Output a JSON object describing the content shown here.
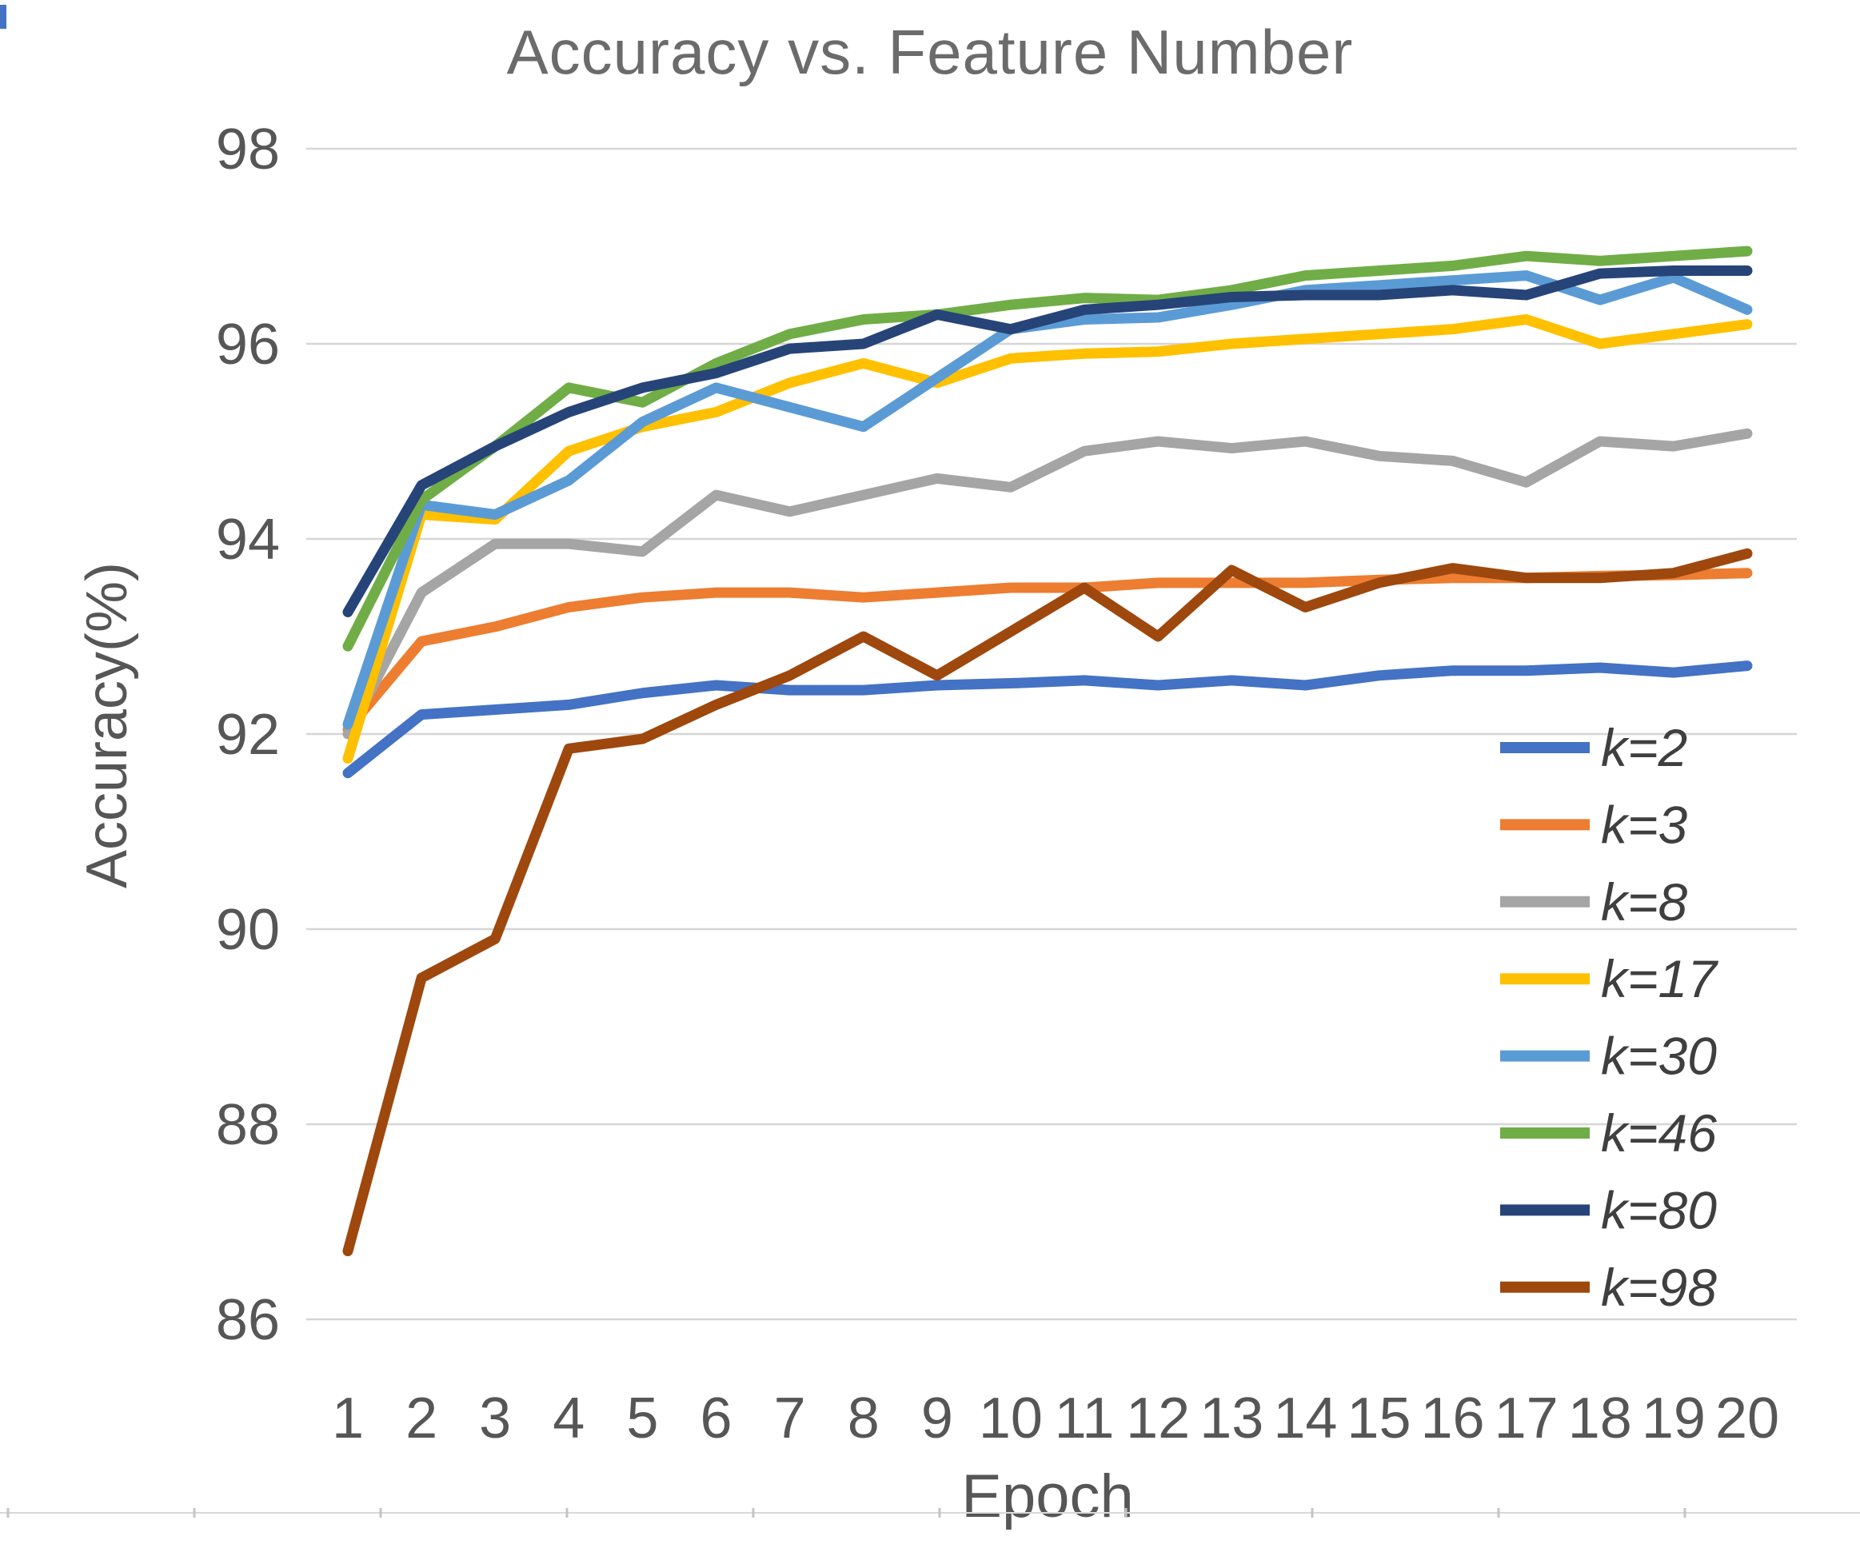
{
  "chart_data": {
    "type": "line",
    "title": "Accuracy vs. Feature Number",
    "xlabel": "Epoch",
    "ylabel": "Accuracy(%)",
    "x": [
      1,
      2,
      3,
      4,
      5,
      6,
      7,
      8,
      9,
      10,
      11,
      12,
      13,
      14,
      15,
      16,
      17,
      18,
      19,
      20
    ],
    "xticks": [
      1,
      2,
      3,
      4,
      5,
      6,
      7,
      8,
      9,
      10,
      11,
      12,
      13,
      14,
      15,
      16,
      17,
      18,
      19,
      20
    ],
    "yticks": [
      86,
      88,
      90,
      92,
      94,
      96,
      98
    ],
    "ylim": [
      85.0,
      98.0
    ],
    "grid": true,
    "legend_position": "right-inside",
    "series": [
      {
        "name": "k=2",
        "color": "#4472C4",
        "values": [
          91.6,
          92.2,
          92.25,
          92.3,
          92.42,
          92.5,
          92.45,
          92.45,
          92.5,
          92.52,
          92.55,
          92.5,
          92.55,
          92.5,
          92.6,
          92.65,
          92.65,
          92.68,
          92.63,
          92.7
        ]
      },
      {
        "name": "k=3",
        "color": "#ED7D31",
        "values": [
          92.05,
          92.95,
          93.1,
          93.3,
          93.4,
          93.45,
          93.45,
          93.4,
          93.45,
          93.5,
          93.5,
          93.55,
          93.55,
          93.55,
          93.58,
          93.6,
          93.6,
          93.62,
          93.63,
          93.65
        ]
      },
      {
        "name": "k=8",
        "color": "#A5A5A5",
        "values": [
          92.0,
          93.45,
          93.95,
          93.95,
          93.87,
          94.45,
          94.28,
          94.45,
          94.62,
          94.53,
          94.9,
          95.0,
          94.93,
          95.0,
          94.85,
          94.8,
          94.58,
          95.0,
          94.95,
          95.08
        ]
      },
      {
        "name": "k=17",
        "color": "#FFC000",
        "values": [
          91.75,
          94.25,
          94.2,
          94.9,
          95.15,
          95.3,
          95.6,
          95.8,
          95.6,
          95.85,
          95.9,
          95.92,
          96.0,
          96.05,
          96.1,
          96.15,
          96.25,
          96.0,
          96.1,
          96.2
        ]
      },
      {
        "name": "k=30",
        "color": "#5B9BD5",
        "values": [
          92.1,
          94.35,
          94.25,
          94.6,
          95.2,
          95.55,
          95.35,
          95.15,
          95.65,
          96.15,
          96.25,
          96.27,
          96.4,
          96.55,
          96.6,
          96.65,
          96.7,
          96.45,
          96.68,
          96.35
        ]
      },
      {
        "name": "k=46",
        "color": "#70AD47",
        "values": [
          92.9,
          94.4,
          94.95,
          95.55,
          95.4,
          95.8,
          96.1,
          96.25,
          96.3,
          96.4,
          96.47,
          96.45,
          96.55,
          96.7,
          96.75,
          96.8,
          96.9,
          96.85,
          96.9,
          96.95
        ]
      },
      {
        "name": "k=80",
        "color": "#264478",
        "values": [
          93.25,
          94.55,
          94.95,
          95.3,
          95.55,
          95.7,
          95.95,
          96.0,
          96.3,
          96.15,
          96.35,
          96.4,
          96.48,
          96.5,
          96.5,
          96.55,
          96.5,
          96.72,
          96.75,
          96.75
        ]
      },
      {
        "name": "k=98",
        "color": "#9E480E",
        "values": [
          86.7,
          89.5,
          89.9,
          91.85,
          91.95,
          92.3,
          92.6,
          93.0,
          92.6,
          93.05,
          93.5,
          93.0,
          93.68,
          93.3,
          93.55,
          93.7,
          93.6,
          93.6,
          93.65,
          93.85
        ]
      }
    ]
  }
}
